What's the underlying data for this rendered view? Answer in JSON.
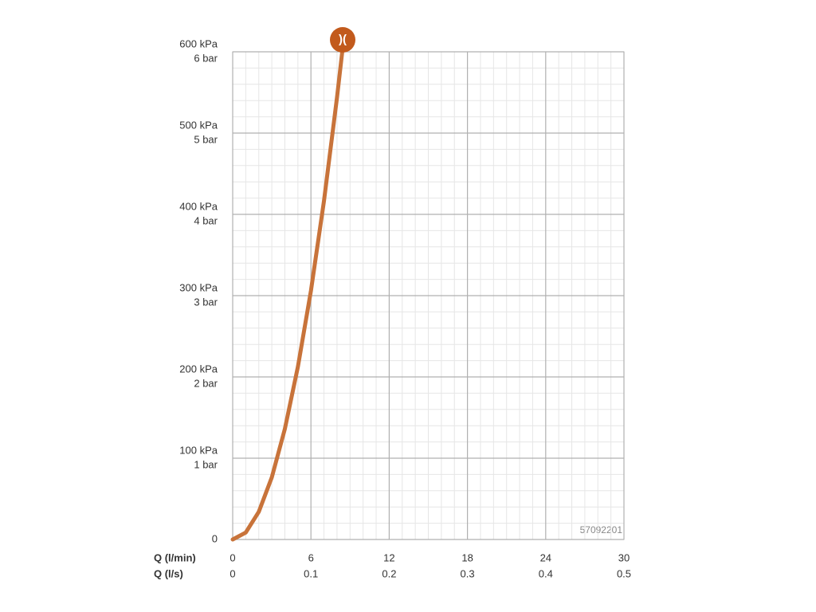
{
  "chart_data": {
    "type": "line",
    "x_label": "Q (l/min)",
    "x2_label": "Q (l/s)",
    "x": [
      0,
      1,
      2,
      3,
      4,
      5,
      6,
      7,
      8,
      8.4
    ],
    "series": [
      {
        "color": "#c8733a",
        "values": [
          0,
          8.5,
          34,
          76.5,
          136,
          212.5,
          306,
          416.5,
          544,
          600
        ]
      }
    ],
    "xlim": [
      0,
      30
    ],
    "xticks": [
      0,
      6,
      12,
      18,
      24,
      30
    ],
    "x2lim": [
      0,
      0.5
    ],
    "x2ticks": [
      0,
      0.1,
      0.2,
      0.3,
      0.4,
      0.5
    ],
    "ylim": [
      0,
      600
    ],
    "yticks": [
      0,
      {
        "value": 100,
        "label": "100 kPa"
      },
      {
        "value": 200,
        "label": "200 kPa"
      },
      {
        "value": 300,
        "label": "300 kPa"
      },
      {
        "value": 400,
        "label": "400 kPa"
      },
      {
        "value": 500,
        "label": "500 kPa"
      },
      {
        "value": 600,
        "label": "600 kPa"
      }
    ],
    "y2lim": [
      0,
      6
    ],
    "y2ticks": [
      {
        "value": 1,
        "label": "1 bar"
      },
      {
        "value": 2,
        "label": "2 bar"
      },
      {
        "value": 3,
        "label": "3 bar"
      },
      {
        "value": 4,
        "label": "4 bar"
      },
      {
        "value": 5,
        "label": "5 bar"
      },
      {
        "value": 6,
        "label": "6 bar"
      }
    ],
    "annotation": "57092201",
    "grid": true
  }
}
